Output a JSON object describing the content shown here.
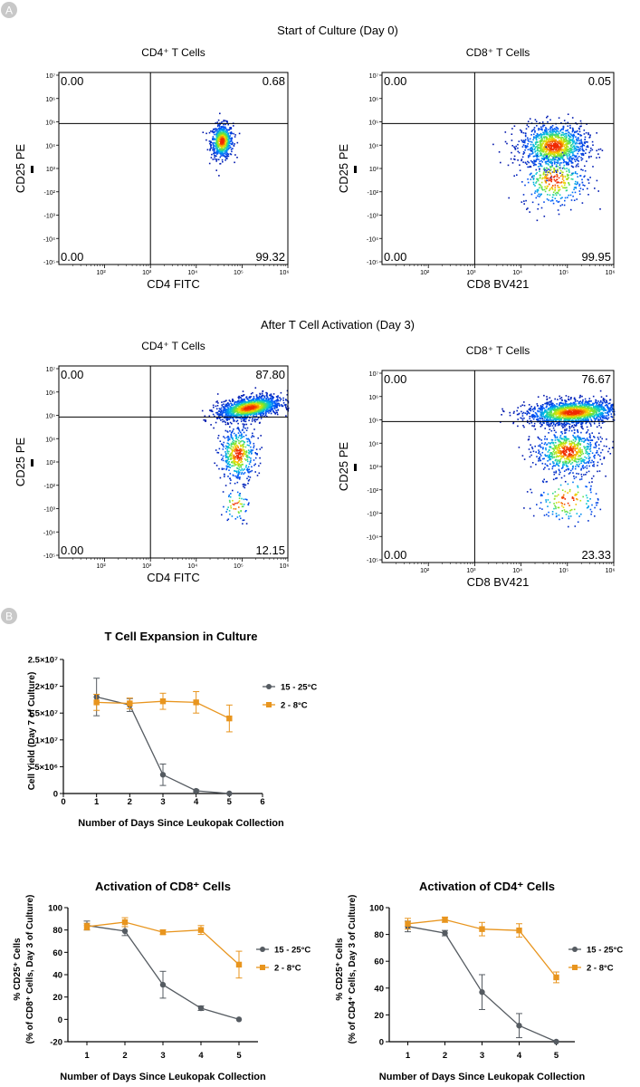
{
  "panels": {
    "A": "A",
    "B": "B"
  },
  "sections": {
    "day0_title": "Start of Culture (Day 0)",
    "day3_title": "After T Cell Activation (Day 3)"
  },
  "colors": {
    "grey_series": "#555b61",
    "orange_series": "#e8951e",
    "badge": "#c8c8c8"
  },
  "flow_plots": [
    {
      "title": "CD4⁺ T Cells",
      "xlabel": "CD4 FITC",
      "ylabel": "CD25 PE",
      "q_tl": "0.00",
      "q_tr": "0.68",
      "q_bl": "0.00",
      "q_br": "99.32",
      "yticks": [
        "10⁷",
        "10⁶",
        "10⁵",
        "10⁴",
        "10³",
        "-10²",
        "-10³",
        "-10⁴",
        "-10⁵"
      ],
      "xticks": [
        "10²",
        "10³",
        "10⁴",
        "10⁵",
        "10⁶"
      ],
      "clusters": [
        {
          "cx": 4.55,
          "cy": 5.1,
          "sx": 0.12,
          "sy": 0.35,
          "n": 650,
          "tilt": 0.1
        }
      ]
    },
    {
      "title": "CD8⁺ T Cells",
      "xlabel": "CD8 BV421",
      "ylabel": "CD25 PE",
      "q_tl": "0.00",
      "q_tr": "0.05",
      "q_bl": "0.00",
      "q_br": "99.95",
      "yticks": [
        "10⁷",
        "10⁶",
        "10⁵",
        "10⁴",
        "10³",
        "-10²",
        "-10³",
        "-10⁴",
        "-10⁵"
      ],
      "xticks": [
        "10²",
        "10³",
        "10⁴",
        "10⁵",
        "10⁶"
      ],
      "clusters": [
        {
          "cx": 4.7,
          "cy": 4.9,
          "sx": 0.35,
          "sy": 0.45,
          "n": 1100,
          "tilt": 0.0
        },
        {
          "cx": 4.7,
          "cy": 3.5,
          "sx": 0.35,
          "sy": 0.55,
          "n": 350,
          "tilt": 0.0
        }
      ]
    },
    {
      "title": "CD4⁺ T Cells",
      "xlabel": "CD4 FITC",
      "ylabel": "CD25 PE",
      "q_tl": "0.00",
      "q_tr": "87.80",
      "q_bl": "0.00",
      "q_br": "12.15",
      "yticks": [
        "10⁷",
        "10⁶",
        "10⁵",
        "10⁴",
        "10³",
        "-10²",
        "-10³",
        "-10⁴",
        "-10⁵"
      ],
      "xticks": [
        "10²",
        "10³",
        "10⁴",
        "10⁵",
        "10⁶"
      ],
      "clusters": [
        {
          "cx": 5.15,
          "cy": 6.2,
          "sx": 0.35,
          "sy": 0.22,
          "n": 1400,
          "tilt": 0.3
        },
        {
          "cx": 4.9,
          "cy": 4.3,
          "sx": 0.2,
          "sy": 0.55,
          "n": 450,
          "tilt": 0.0
        },
        {
          "cx": 4.85,
          "cy": 2.2,
          "sx": 0.15,
          "sy": 0.35,
          "n": 60,
          "tilt": 0.0
        }
      ]
    },
    {
      "title": "CD8⁺ T Cells",
      "xlabel": "CD8 BV421",
      "ylabel": "CD25 PE",
      "q_tl": "0.00",
      "q_tr": "76.67",
      "q_bl": "0.00",
      "q_br": "23.33",
      "yticks": [
        "10⁷",
        "10⁶",
        "10⁵",
        "10⁴",
        "10³",
        "-10²",
        "-10³",
        "-10⁴",
        "-10⁵"
      ],
      "xticks": [
        "10²",
        "10³",
        "10⁴",
        "10⁵",
        "10⁶"
      ],
      "clusters": [
        {
          "cx": 5.1,
          "cy": 6.2,
          "sx": 0.5,
          "sy": 0.25,
          "n": 1600,
          "tilt": 0.1
        },
        {
          "cx": 5.0,
          "cy": 4.6,
          "sx": 0.35,
          "sy": 0.45,
          "n": 700,
          "tilt": 0.0
        },
        {
          "cx": 5.0,
          "cy": 2.6,
          "sx": 0.35,
          "sy": 0.5,
          "n": 150,
          "tilt": 0.0
        }
      ]
    }
  ],
  "chart_data": [
    {
      "type": "line",
      "title": "T Cell Expansion in Culture",
      "xlabel": "Number of Days Since Leukopak Collection",
      "ylabel": "Cell Yield (Day 7 of Culture)",
      "x": [
        1,
        2,
        3,
        4,
        5
      ],
      "xlim": [
        0,
        6
      ],
      "xticks": [
        "0",
        "1",
        "2",
        "3",
        "4",
        "5",
        "6"
      ],
      "ylim": [
        0,
        25000000
      ],
      "yticks": [
        "0",
        "5×10⁶",
        "1×10⁷",
        "1.5×10⁷",
        "2×10⁷",
        "2.5×10⁷"
      ],
      "series": [
        {
          "name": "15 - 25°C",
          "color": "#555b61",
          "marker": "circle",
          "values": [
            18000000,
            16500000,
            3500000,
            500000,
            0
          ],
          "errors": [
            3500000,
            1200000,
            2000000,
            200000,
            0
          ]
        },
        {
          "name": "2 - 8°C",
          "color": "#e8951e",
          "marker": "square",
          "values": [
            17000000,
            16800000,
            17200000,
            17000000,
            14000000
          ],
          "errors": [
            1500000,
            1000000,
            1500000,
            2000000,
            2500000
          ]
        }
      ],
      "legend": "right"
    },
    {
      "type": "line",
      "title": "Activation of CD8⁺ Cells",
      "xlabel": "Number of Days Since Leukopak Collection",
      "ylabel": "% CD25⁺ Cells",
      "ylabel2": "(% of CD8⁺ Cells, Day 3 of Culture)",
      "x": [
        1,
        2,
        3,
        4,
        5
      ],
      "xlim": [
        0.5,
        5.5
      ],
      "xticks": [
        "1",
        "2",
        "3",
        "4",
        "5"
      ],
      "ylim": [
        -20,
        100
      ],
      "yticks": [
        "-20",
        "0",
        "20",
        "40",
        "60",
        "80",
        "100"
      ],
      "series": [
        {
          "name": "15 - 25°C",
          "color": "#555b61",
          "marker": "circle",
          "values": [
            84,
            79,
            31,
            10,
            0
          ],
          "errors": [
            4,
            4,
            12,
            2,
            0
          ]
        },
        {
          "name": "2 - 8°C",
          "color": "#e8951e",
          "marker": "square",
          "values": [
            83,
            87,
            78,
            80,
            49
          ],
          "errors": [
            3,
            4,
            2,
            4,
            12
          ]
        }
      ],
      "legend": "right"
    },
    {
      "type": "line",
      "title": "Activation of CD4⁺ Cells",
      "xlabel": "Number of Days Since Leukopak Collection",
      "ylabel": "% CD25⁺ Cells",
      "ylabel2": "(% of CD4⁺ Cells, Day 3 of Culture)",
      "x": [
        1,
        2,
        3,
        4,
        5
      ],
      "xlim": [
        0.5,
        5.5
      ],
      "xticks": [
        "1",
        "2",
        "3",
        "4",
        "5"
      ],
      "ylim": [
        0,
        100
      ],
      "yticks": [
        "0",
        "20",
        "40",
        "60",
        "80",
        "100"
      ],
      "series": [
        {
          "name": "15 - 25°C",
          "color": "#555b61",
          "marker": "circle",
          "values": [
            86,
            81,
            37,
            12,
            0
          ],
          "errors": [
            4,
            2,
            13,
            9,
            0
          ]
        },
        {
          "name": "2 - 8°C",
          "color": "#e8951e",
          "marker": "square",
          "values": [
            88,
            91,
            84,
            83,
            48
          ],
          "errors": [
            4,
            2,
            5,
            5,
            4
          ]
        }
      ],
      "legend": "right"
    }
  ]
}
